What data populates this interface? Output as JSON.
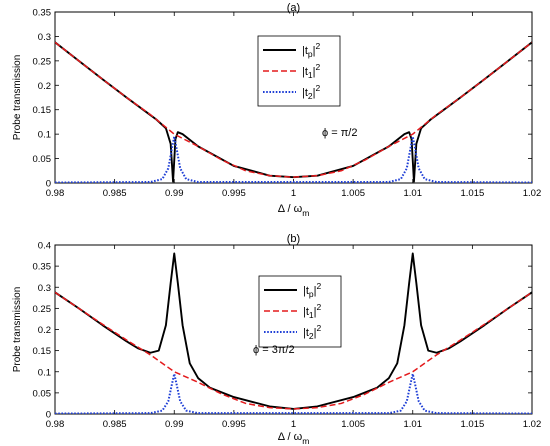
{
  "chart_data": [
    {
      "type": "line",
      "title": "(a)",
      "xlabel": "Δ / ωm",
      "xlabel_main": "Δ / ω",
      "xlabel_sub": "m",
      "ylabel": "Probe transmission",
      "xlim": [
        0.98,
        1.02
      ],
      "ylim": [
        0,
        0.35
      ],
      "xticks": [
        "0.98",
        "0.985",
        "0.99",
        "0.995",
        "1",
        "1.005",
        "1.01",
        "1.015",
        "1.02"
      ],
      "yticks": [
        "0",
        "0.05",
        "0.1",
        "0.15",
        "0.2",
        "0.25",
        "0.3",
        "0.35"
      ],
      "grid": false,
      "legend_position": "top-center",
      "annotation": "ϕ = π/2",
      "series": [
        {
          "name": "|tp|2",
          "label_main": "|t",
          "label_sub": "p",
          "label_tail": "|",
          "label_sup": "2",
          "color": "#000000",
          "dash": "solid",
          "x": [
            0.98,
            0.982,
            0.984,
            0.986,
            0.9875,
            0.9885,
            0.9893,
            0.9897,
            0.9899,
            0.9901,
            0.9903,
            0.9907,
            0.992,
            0.995,
            0.998,
            1.0,
            1.002,
            1.005,
            1.008,
            1.0093,
            1.0097,
            1.0099,
            1.0101,
            1.0103,
            1.0107,
            1.0115,
            1.0125,
            1.014,
            1.016,
            1.018,
            1.02
          ],
          "y": [
            0.288,
            0.25,
            0.212,
            0.175,
            0.148,
            0.13,
            0.112,
            0.08,
            0.003,
            0.09,
            0.104,
            0.1,
            0.075,
            0.035,
            0.015,
            0.012,
            0.015,
            0.035,
            0.075,
            0.1,
            0.104,
            0.09,
            0.003,
            0.08,
            0.112,
            0.13,
            0.148,
            0.175,
            0.212,
            0.25,
            0.288
          ]
        },
        {
          "name": "|t1|2",
          "label_main": "|t",
          "label_sub": "1",
          "label_tail": "|",
          "label_sup": "2",
          "color": "#e31a1c",
          "dash": "dashed",
          "x": [
            0.98,
            0.982,
            0.984,
            0.986,
            0.988,
            0.99,
            0.992,
            0.994,
            0.996,
            0.998,
            1.0,
            1.002,
            1.004,
            1.006,
            1.008,
            1.01,
            1.012,
            1.014,
            1.016,
            1.018,
            1.02
          ],
          "y": [
            0.288,
            0.25,
            0.212,
            0.175,
            0.14,
            0.1,
            0.075,
            0.047,
            0.025,
            0.015,
            0.012,
            0.015,
            0.025,
            0.047,
            0.075,
            0.1,
            0.14,
            0.175,
            0.212,
            0.25,
            0.288
          ]
        },
        {
          "name": "|t2|2",
          "label_main": "|t",
          "label_sub": "2",
          "label_tail": "|",
          "label_sup": "2",
          "color": "#1f3fd6",
          "dash": "dotted",
          "x": [
            0.98,
            0.988,
            0.989,
            0.9895,
            0.9898,
            0.99,
            0.9902,
            0.9905,
            0.991,
            0.992,
            1.008,
            1.009,
            1.0095,
            1.0098,
            1.01,
            1.0102,
            1.0105,
            1.011,
            1.012,
            1.02
          ],
          "y": [
            0.001,
            0.002,
            0.008,
            0.03,
            0.07,
            0.095,
            0.07,
            0.03,
            0.008,
            0.002,
            0.002,
            0.008,
            0.03,
            0.07,
            0.095,
            0.07,
            0.03,
            0.008,
            0.002,
            0.001
          ]
        }
      ]
    },
    {
      "type": "line",
      "title": "(b)",
      "xlabel": "Δ / ωm",
      "xlabel_main": "Δ / ω",
      "xlabel_sub": "m",
      "ylabel": "Probe transmission",
      "xlim": [
        0.98,
        1.02
      ],
      "ylim": [
        0,
        0.4
      ],
      "xticks": [
        "0.98",
        "0.985",
        "0.99",
        "0.995",
        "1",
        "1.005",
        "1.01",
        "1.015",
        "1.02"
      ],
      "yticks": [
        "0",
        "0.05",
        "0.1",
        "0.15",
        "0.2",
        "0.25",
        "0.3",
        "0.35",
        "0.4"
      ],
      "grid": false,
      "legend_position": "top-center",
      "annotation": "ϕ = 3π/2",
      "series": [
        {
          "name": "|tp|2",
          "label_main": "|t",
          "label_sub": "p",
          "label_tail": "|",
          "label_sup": "2",
          "color": "#000000",
          "dash": "solid",
          "x": [
            0.98,
            0.982,
            0.984,
            0.986,
            0.987,
            0.988,
            0.9887,
            0.9893,
            0.9897,
            0.99,
            0.9903,
            0.9907,
            0.9913,
            0.992,
            0.993,
            0.995,
            0.998,
            1.0,
            1.002,
            1.005,
            1.007,
            1.008,
            1.0087,
            1.0093,
            1.0097,
            1.01,
            1.0103,
            1.0107,
            1.0113,
            1.012,
            1.013,
            1.014,
            1.016,
            1.018,
            1.02
          ],
          "y": [
            0.288,
            0.25,
            0.21,
            0.172,
            0.155,
            0.145,
            0.15,
            0.21,
            0.31,
            0.38,
            0.31,
            0.21,
            0.12,
            0.085,
            0.062,
            0.04,
            0.018,
            0.012,
            0.018,
            0.04,
            0.062,
            0.085,
            0.12,
            0.21,
            0.31,
            0.38,
            0.31,
            0.21,
            0.15,
            0.145,
            0.155,
            0.172,
            0.21,
            0.25,
            0.288
          ]
        },
        {
          "name": "|t1|2",
          "label_main": "|t",
          "label_sub": "1",
          "label_tail": "|",
          "label_sup": "2",
          "color": "#e31a1c",
          "dash": "dashed",
          "x": [
            0.98,
            0.982,
            0.984,
            0.986,
            0.988,
            0.99,
            0.992,
            0.994,
            0.996,
            0.998,
            1.0,
            1.002,
            1.004,
            1.006,
            1.008,
            1.01,
            1.012,
            1.014,
            1.016,
            1.018,
            1.02
          ],
          "y": [
            0.288,
            0.25,
            0.212,
            0.175,
            0.14,
            0.1,
            0.075,
            0.047,
            0.025,
            0.015,
            0.012,
            0.015,
            0.025,
            0.047,
            0.075,
            0.1,
            0.14,
            0.175,
            0.212,
            0.25,
            0.288
          ]
        },
        {
          "name": "|t2|2",
          "label_main": "|t",
          "label_sub": "2",
          "label_tail": "|",
          "label_sup": "2",
          "color": "#1f3fd6",
          "dash": "dotted",
          "x": [
            0.98,
            0.988,
            0.989,
            0.9895,
            0.9898,
            0.99,
            0.9902,
            0.9905,
            0.991,
            0.992,
            1.008,
            1.009,
            1.0095,
            1.0098,
            1.01,
            1.0102,
            1.0105,
            1.011,
            1.012,
            1.02
          ],
          "y": [
            0.001,
            0.002,
            0.008,
            0.03,
            0.07,
            0.095,
            0.07,
            0.03,
            0.008,
            0.002,
            0.002,
            0.008,
            0.03,
            0.07,
            0.095,
            0.07,
            0.03,
            0.008,
            0.002,
            0.001
          ]
        }
      ]
    }
  ]
}
